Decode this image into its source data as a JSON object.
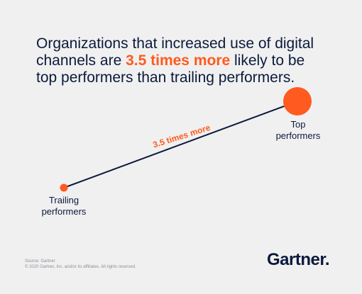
{
  "headline": {
    "before": "Organizations that increased use of digital channels are ",
    "highlight": "3.5 times more",
    "after": " likely to be top performers than trailing performers."
  },
  "chart_data": {
    "type": "scatter",
    "title": "",
    "xlabel": "",
    "ylabel": "",
    "points": [
      {
        "label_line1": "Trailing",
        "label_line2": "performers",
        "relative_value": 1
      },
      {
        "label_line1": "Top",
        "label_line2": "performers",
        "relative_value": 3.5
      }
    ],
    "connector_label": "3.5 times more",
    "colors": {
      "points": "#ff5a1f",
      "line": "#0b1a3c",
      "connector_label": "#ff5a1f"
    }
  },
  "footer": {
    "source": "Source: Gartner",
    "copyright": "© 2020 Gartner, Inc. and/or its affiliates. All rights reserved.",
    "logo_text": "Gartner",
    "logo_dot": "."
  }
}
